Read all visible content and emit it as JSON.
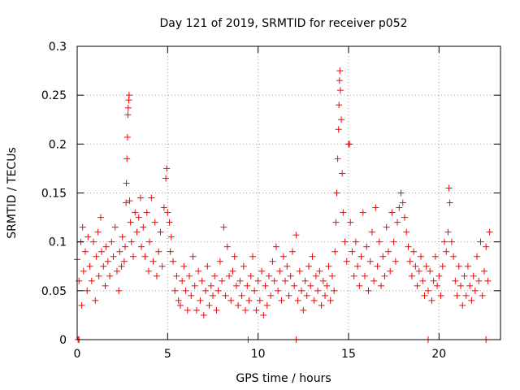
{
  "chart_data": {
    "type": "scatter",
    "title": "Day 121 of 2019, SRMTID for receiver p052",
    "xlabel": "GPS time / hours",
    "ylabel": "SRMTID / TECUs",
    "xlim": [
      0,
      23.4
    ],
    "ylim": [
      0,
      0.3
    ],
    "x_ticks": [
      0,
      5,
      10,
      15,
      20
    ],
    "x_tick_labels": [
      "0",
      "5",
      "10",
      "15",
      "20"
    ],
    "y_ticks": [
      0,
      0.05,
      0.1,
      0.15,
      0.2,
      0.25,
      0.3
    ],
    "y_tick_labels": [
      "0",
      "0.05",
      "0.1",
      "0.15",
      "0.2",
      "0.25",
      "0.3"
    ],
    "grid": true,
    "marker": "+",
    "series": [
      {
        "name": "SRMTID",
        "color": "#ff0000",
        "points": [
          [
            0.05,
            0.0
          ],
          [
            0.1,
            0.0
          ],
          [
            9.45,
            0.0
          ],
          [
            12.1,
            0.0
          ],
          [
            19.4,
            0.0
          ],
          [
            22.6,
            0.0
          ],
          [
            0.0,
            0.082
          ],
          [
            0.1,
            0.06
          ],
          [
            0.2,
            0.1
          ],
          [
            0.25,
            0.035
          ],
          [
            0.3,
            0.115
          ],
          [
            0.35,
            0.07
          ],
          [
            0.45,
            0.09
          ],
          [
            0.55,
            0.05
          ],
          [
            0.6,
            0.105
          ],
          [
            0.7,
            0.075
          ],
          [
            0.8,
            0.06
          ],
          [
            0.9,
            0.1
          ],
          [
            1.0,
            0.04
          ],
          [
            1.05,
            0.085
          ],
          [
            1.15,
            0.11
          ],
          [
            1.2,
            0.065
          ],
          [
            1.3,
            0.125
          ],
          [
            1.35,
            0.09
          ],
          [
            1.45,
            0.075
          ],
          [
            1.55,
            0.055
          ],
          [
            1.6,
            0.095
          ],
          [
            1.7,
            0.08
          ],
          [
            1.8,
            0.065
          ],
          [
            1.9,
            0.1
          ],
          [
            2.0,
            0.085
          ],
          [
            2.1,
            0.115
          ],
          [
            2.2,
            0.07
          ],
          [
            2.3,
            0.05
          ],
          [
            2.35,
            0.09
          ],
          [
            2.45,
            0.075
          ],
          [
            2.5,
            0.105
          ],
          [
            2.6,
            0.08
          ],
          [
            2.65,
            0.095
          ],
          [
            2.7,
            0.14
          ],
          [
            2.72,
            0.16
          ],
          [
            2.75,
            0.185
          ],
          [
            2.78,
            0.207
          ],
          [
            2.8,
            0.23
          ],
          [
            2.82,
            0.237
          ],
          [
            2.85,
            0.245
          ],
          [
            2.87,
            0.25
          ],
          [
            2.9,
            0.142
          ],
          [
            2.95,
            0.12
          ],
          [
            3.0,
            0.1
          ],
          [
            3.1,
            0.085
          ],
          [
            3.2,
            0.13
          ],
          [
            3.3,
            0.11
          ],
          [
            3.4,
            0.125
          ],
          [
            3.5,
            0.145
          ],
          [
            3.55,
            0.095
          ],
          [
            3.65,
            0.115
          ],
          [
            3.75,
            0.085
          ],
          [
            3.85,
            0.13
          ],
          [
            3.95,
            0.07
          ],
          [
            4.0,
            0.1
          ],
          [
            4.1,
            0.145
          ],
          [
            4.2,
            0.08
          ],
          [
            4.3,
            0.12
          ],
          [
            4.4,
            0.065
          ],
          [
            4.5,
            0.09
          ],
          [
            4.6,
            0.11
          ],
          [
            4.7,
            0.075
          ],
          [
            4.8,
            0.135
          ],
          [
            4.9,
            0.165
          ],
          [
            4.95,
            0.175
          ],
          [
            5.0,
            0.13
          ],
          [
            5.1,
            0.12
          ],
          [
            5.15,
            0.09
          ],
          [
            5.2,
            0.105
          ],
          [
            5.3,
            0.08
          ],
          [
            5.4,
            0.05
          ],
          [
            5.5,
            0.065
          ],
          [
            5.6,
            0.04
          ],
          [
            5.7,
            0.035
          ],
          [
            5.8,
            0.06
          ],
          [
            5.9,
            0.075
          ],
          [
            6.0,
            0.05
          ],
          [
            6.1,
            0.03
          ],
          [
            6.2,
            0.065
          ],
          [
            6.3,
            0.045
          ],
          [
            6.4,
            0.085
          ],
          [
            6.5,
            0.055
          ],
          [
            6.6,
            0.03
          ],
          [
            6.7,
            0.07
          ],
          [
            6.8,
            0.04
          ],
          [
            6.9,
            0.06
          ],
          [
            7.0,
            0.025
          ],
          [
            7.1,
            0.05
          ],
          [
            7.2,
            0.075
          ],
          [
            7.3,
            0.035
          ],
          [
            7.4,
            0.055
          ],
          [
            7.5,
            0.045
          ],
          [
            7.6,
            0.065
          ],
          [
            7.7,
            0.03
          ],
          [
            7.8,
            0.05
          ],
          [
            7.9,
            0.08
          ],
          [
            8.0,
            0.06
          ],
          [
            8.1,
            0.115
          ],
          [
            8.2,
            0.045
          ],
          [
            8.3,
            0.095
          ],
          [
            8.4,
            0.065
          ],
          [
            8.5,
            0.04
          ],
          [
            8.6,
            0.07
          ],
          [
            8.7,
            0.085
          ],
          [
            8.8,
            0.055
          ],
          [
            8.9,
            0.035
          ],
          [
            9.0,
            0.06
          ],
          [
            9.1,
            0.045
          ],
          [
            9.2,
            0.075
          ],
          [
            9.3,
            0.03
          ],
          [
            9.4,
            0.055
          ],
          [
            9.5,
            0.04
          ],
          [
            9.6,
            0.065
          ],
          [
            9.7,
            0.085
          ],
          [
            9.8,
            0.05
          ],
          [
            9.9,
            0.03
          ],
          [
            10.0,
            0.06
          ],
          [
            10.1,
            0.04
          ],
          [
            10.2,
            0.07
          ],
          [
            10.3,
            0.025
          ],
          [
            10.4,
            0.055
          ],
          [
            10.5,
            0.035
          ],
          [
            10.6,
            0.065
          ],
          [
            10.7,
            0.045
          ],
          [
            10.8,
            0.08
          ],
          [
            10.9,
            0.06
          ],
          [
            11.0,
            0.095
          ],
          [
            11.1,
            0.05
          ],
          [
            11.2,
            0.07
          ],
          [
            11.3,
            0.04
          ],
          [
            11.4,
            0.085
          ],
          [
            11.5,
            0.06
          ],
          [
            11.6,
            0.075
          ],
          [
            11.7,
            0.045
          ],
          [
            11.8,
            0.065
          ],
          [
            11.9,
            0.09
          ],
          [
            12.0,
            0.055
          ],
          [
            12.1,
            0.107
          ],
          [
            12.2,
            0.04
          ],
          [
            12.3,
            0.07
          ],
          [
            12.4,
            0.05
          ],
          [
            12.5,
            0.03
          ],
          [
            12.6,
            0.06
          ],
          [
            12.7,
            0.045
          ],
          [
            12.8,
            0.075
          ],
          [
            12.9,
            0.055
          ],
          [
            13.0,
            0.085
          ],
          [
            13.1,
            0.04
          ],
          [
            13.2,
            0.065
          ],
          [
            13.3,
            0.05
          ],
          [
            13.4,
            0.07
          ],
          [
            13.5,
            0.035
          ],
          [
            13.6,
            0.06
          ],
          [
            13.7,
            0.045
          ],
          [
            13.8,
            0.055
          ],
          [
            13.9,
            0.075
          ],
          [
            14.0,
            0.04
          ],
          [
            14.1,
            0.065
          ],
          [
            14.2,
            0.05
          ],
          [
            14.25,
            0.09
          ],
          [
            14.3,
            0.12
          ],
          [
            14.35,
            0.15
          ],
          [
            14.4,
            0.185
          ],
          [
            14.45,
            0.215
          ],
          [
            14.47,
            0.24
          ],
          [
            14.5,
            0.265
          ],
          [
            14.52,
            0.275
          ],
          [
            14.55,
            0.255
          ],
          [
            14.6,
            0.225
          ],
          [
            14.65,
            0.17
          ],
          [
            14.7,
            0.13
          ],
          [
            14.8,
            0.1
          ],
          [
            14.9,
            0.08
          ],
          [
            15.0,
            0.2
          ],
          [
            15.05,
            0.2
          ],
          [
            15.1,
            0.12
          ],
          [
            15.2,
            0.09
          ],
          [
            15.3,
            0.065
          ],
          [
            15.4,
            0.1
          ],
          [
            15.5,
            0.075
          ],
          [
            15.6,
            0.055
          ],
          [
            15.7,
            0.085
          ],
          [
            15.8,
            0.13
          ],
          [
            15.9,
            0.065
          ],
          [
            16.0,
            0.095
          ],
          [
            16.1,
            0.05
          ],
          [
            16.2,
            0.08
          ],
          [
            16.3,
            0.11
          ],
          [
            16.4,
            0.06
          ],
          [
            16.5,
            0.135
          ],
          [
            16.6,
            0.075
          ],
          [
            16.7,
            0.1
          ],
          [
            16.8,
            0.055
          ],
          [
            16.9,
            0.085
          ],
          [
            17.0,
            0.065
          ],
          [
            17.1,
            0.115
          ],
          [
            17.2,
            0.09
          ],
          [
            17.3,
            0.07
          ],
          [
            17.4,
            0.13
          ],
          [
            17.5,
            0.1
          ],
          [
            17.6,
            0.08
          ],
          [
            17.7,
            0.12
          ],
          [
            17.8,
            0.135
          ],
          [
            17.9,
            0.15
          ],
          [
            18.0,
            0.14
          ],
          [
            18.1,
            0.125
          ],
          [
            18.2,
            0.11
          ],
          [
            18.3,
            0.095
          ],
          [
            18.4,
            0.08
          ],
          [
            18.5,
            0.065
          ],
          [
            18.6,
            0.09
          ],
          [
            18.7,
            0.075
          ],
          [
            18.8,
            0.055
          ],
          [
            18.9,
            0.07
          ],
          [
            19.0,
            0.085
          ],
          [
            19.1,
            0.06
          ],
          [
            19.2,
            0.045
          ],
          [
            19.3,
            0.075
          ],
          [
            19.4,
            0.05
          ],
          [
            19.5,
            0.07
          ],
          [
            19.6,
            0.04
          ],
          [
            19.7,
            0.06
          ],
          [
            19.8,
            0.085
          ],
          [
            19.9,
            0.055
          ],
          [
            20.0,
            0.065
          ],
          [
            20.1,
            0.045
          ],
          [
            20.2,
            0.075
          ],
          [
            20.3,
            0.1
          ],
          [
            20.4,
            0.09
          ],
          [
            20.5,
            0.11
          ],
          [
            20.55,
            0.155
          ],
          [
            20.6,
            0.14
          ],
          [
            20.7,
            0.1
          ],
          [
            20.8,
            0.085
          ],
          [
            20.9,
            0.06
          ],
          [
            21.0,
            0.045
          ],
          [
            21.1,
            0.075
          ],
          [
            21.2,
            0.055
          ],
          [
            21.3,
            0.035
          ],
          [
            21.4,
            0.065
          ],
          [
            21.5,
            0.045
          ],
          [
            21.6,
            0.075
          ],
          [
            21.7,
            0.055
          ],
          [
            21.8,
            0.04
          ],
          [
            21.9,
            0.065
          ],
          [
            22.0,
            0.05
          ],
          [
            22.1,
            0.085
          ],
          [
            22.2,
            0.06
          ],
          [
            22.3,
            0.1
          ],
          [
            22.4,
            0.045
          ],
          [
            22.5,
            0.07
          ],
          [
            22.6,
            0.095
          ],
          [
            22.7,
            0.06
          ],
          [
            22.8,
            0.11
          ]
        ]
      }
    ]
  }
}
